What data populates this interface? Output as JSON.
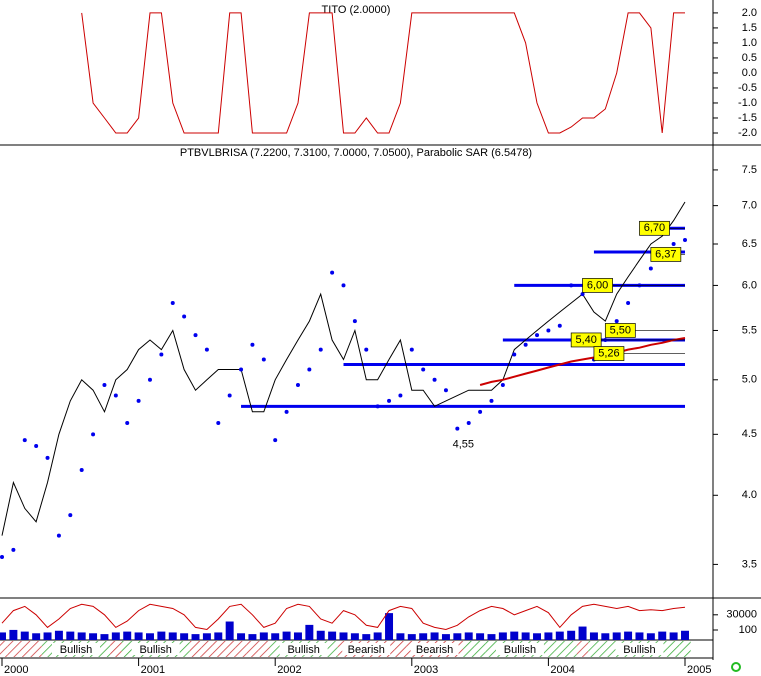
{
  "chart_data": [
    {
      "type": "line",
      "title": "TITO (2.0000)",
      "color": "#cc0000",
      "values": [
        null,
        null,
        null,
        null,
        null,
        null,
        null,
        2,
        -1,
        -1.5,
        -2,
        -2,
        -1.5,
        2,
        2,
        -1,
        -2,
        -2,
        -2,
        -2,
        2,
        2,
        -2,
        -2,
        -2,
        -2,
        -1,
        2,
        2,
        2,
        -2,
        -2,
        -1.5,
        -2,
        -2,
        -1,
        2,
        2,
        2,
        2,
        2,
        2,
        2,
        2,
        2,
        2,
        1,
        -1,
        -2,
        -2,
        -1.8,
        -1.5,
        -1.5,
        -1.2,
        0,
        2,
        2,
        1.5,
        -2,
        2,
        2
      ],
      "ylim": [
        -2.4,
        2.43
      ],
      "yticks": [
        {
          "value": 2,
          "label": "2.0"
        },
        1.5,
        {
          "value": 1,
          "label": "1.0"
        },
        0.5,
        {
          "value": 0,
          "label": "0.0"
        },
        -0.5,
        {
          "value": -1,
          "label": "-1.0"
        },
        -1.5,
        {
          "value": -2,
          "label": "-2.0"
        }
      ]
    },
    {
      "type": "line",
      "title": "PTBVLBRISA (7.2200, 7.3100, 7.0000, 7.0500), Parabolic SAR (6.5478)",
      "log_scale": true,
      "series": [
        {
          "color": "#000000",
          "marker": "line",
          "values": [
            3.7,
            4.1,
            3.9,
            3.8,
            4.1,
            4.5,
            4.8,
            5.0,
            4.9,
            4.7,
            5.0,
            5.1,
            5.3,
            5.4,
            5.3,
            5.5,
            5.1,
            4.9,
            5.0,
            5.1,
            5.1,
            5.1,
            4.7,
            4.7,
            5.0,
            5.2,
            5.4,
            5.6,
            5.9,
            5.4,
            5.2,
            5.5,
            5.0,
            5.0,
            5.2,
            5.4,
            4.9,
            4.9,
            4.75,
            4.8,
            4.85,
            4.9,
            4.9,
            4.9,
            5.0,
            5.3,
            5.4,
            5.5,
            5.6,
            5.7,
            5.8,
            5.9,
            5.7,
            5.6,
            5.9,
            6.1,
            6.3,
            6.5,
            6.6,
            6.8,
            7.05
          ]
        },
        {
          "color": "#0000ee",
          "marker": "dot",
          "values": [
            3.55,
            3.6,
            4.45,
            4.4,
            4.3,
            3.7,
            3.85,
            4.2,
            4.5,
            4.95,
            4.85,
            4.6,
            4.8,
            5.0,
            5.25,
            5.8,
            5.65,
            5.45,
            5.3,
            4.6,
            4.85,
            5.1,
            5.35,
            5.2,
            4.45,
            4.7,
            4.95,
            5.1,
            5.3,
            6.15,
            6.0,
            5.6,
            5.3,
            4.75,
            4.8,
            4.85,
            5.3,
            5.1,
            5.0,
            4.9,
            4.55,
            4.6,
            4.7,
            4.8,
            4.95,
            5.25,
            5.35,
            5.45,
            5.5,
            5.55,
            6.0,
            5.9,
            5.2,
            5.4,
            5.6,
            5.8,
            6.0,
            6.2,
            6.35,
            6.5,
            6.55
          ]
        },
        {
          "color": "#cc0000",
          "marker": "line",
          "values": [
            null,
            null,
            null,
            null,
            null,
            null,
            null,
            null,
            null,
            null,
            null,
            null,
            null,
            null,
            null,
            null,
            null,
            null,
            null,
            null,
            null,
            null,
            null,
            null,
            null,
            null,
            null,
            null,
            null,
            null,
            null,
            null,
            null,
            null,
            null,
            null,
            null,
            null,
            null,
            null,
            null,
            null,
            4.95,
            4.98,
            5.0,
            5.03,
            5.06,
            5.09,
            5.12,
            5.15,
            5.18,
            5.2,
            5.22,
            5.25,
            5.27,
            5.3,
            5.32,
            5.35,
            5.37,
            5.4,
            5.42
          ]
        }
      ],
      "ylim": [
        3.28,
        7.87
      ],
      "yticks": [
        3.5,
        {
          "value": 4,
          "label": "4.0"
        },
        4.5,
        {
          "value": 5,
          "label": "5.0"
        },
        5.5,
        {
          "value": 6,
          "label": "6.0"
        },
        6.5,
        {
          "value": 7,
          "label": "7.0"
        },
        7.5
      ],
      "levels": [
        {
          "value": 4.75,
          "start": 21
        },
        {
          "value": 5.15,
          "start": 30
        },
        {
          "value": 5.4,
          "start": 44
        },
        {
          "value": 6.0,
          "start": 45
        },
        {
          "value": 6.4,
          "start": 52
        },
        {
          "value": 6.7,
          "start": 56
        }
      ],
      "annotations": [
        {
          "value": 6.7,
          "label": "6,70",
          "at": 56
        },
        {
          "value": 6.37,
          "label": "6,37",
          "at": 57
        },
        {
          "value": 6.0,
          "label": "6,00",
          "at": 51
        },
        {
          "value": 5.5,
          "label": "5,50",
          "at": 53
        },
        {
          "value": 5.4,
          "label": "5,40",
          "at": 50
        },
        {
          "value": 5.26,
          "label": "5,26",
          "at": 52
        }
      ],
      "low_label": {
        "value": 4.55,
        "label": "4,55",
        "at": 40
      }
    },
    {
      "type": "bar",
      "categories": [
        "2000",
        null,
        null,
        null,
        null,
        null,
        null,
        null,
        null,
        null,
        null,
        null,
        "2001",
        null,
        null,
        null,
        null,
        null,
        null,
        null,
        null,
        null,
        null,
        null,
        "2002",
        null,
        null,
        null,
        null,
        null,
        null,
        null,
        null,
        null,
        null,
        null,
        "2003",
        null,
        null,
        null,
        null,
        null,
        null,
        null,
        null,
        null,
        null,
        null,
        "2004",
        null,
        null,
        null,
        null,
        null,
        null,
        null,
        null,
        null,
        null,
        null,
        "2005"
      ],
      "series": [
        {
          "color": "#0000cc",
          "values": [
            9000,
            12000,
            10000,
            8000,
            9000,
            11000,
            10000,
            9000,
            8000,
            7000,
            9000,
            10000,
            9000,
            8000,
            10000,
            9000,
            8000,
            7000,
            8000,
            9000,
            22000,
            8000,
            7000,
            9000,
            8000,
            10000,
            9000,
            18000,
            11000,
            10000,
            9000,
            8000,
            7000,
            9000,
            32000,
            8000,
            7000,
            8000,
            9000,
            7000,
            8000,
            9000,
            8000,
            7000,
            9000,
            10000,
            9000,
            8000,
            9000,
            10000,
            11000,
            16000,
            9000,
            8000,
            9000,
            10000,
            9000,
            8000,
            10000,
            9000,
            11000
          ]
        },
        {
          "color": "#cc0000",
          "axis": "y2",
          "values": [
            40,
            70,
            80,
            60,
            30,
            50,
            75,
            85,
            80,
            60,
            30,
            45,
            70,
            85,
            80,
            75,
            60,
            30,
            25,
            50,
            80,
            85,
            60,
            30,
            40,
            75,
            85,
            80,
            50,
            40,
            70,
            60,
            35,
            30,
            70,
            80,
            75,
            40,
            30,
            25,
            35,
            55,
            70,
            80,
            75,
            60,
            70,
            80,
            65,
            30,
            60,
            80,
            85,
            80,
            75,
            80,
            70,
            72,
            70,
            75,
            78
          ]
        }
      ],
      "ylim": [
        0,
        50000
      ],
      "yticks": [
        30000
      ],
      "y2lim": [
        0,
        100
      ],
      "y2ticks": [
        100
      ],
      "regime": [
        null,
        null,
        null,
        null,
        "Bullish",
        "Bullish",
        "Bullish",
        "Bullish",
        "Bullish",
        "Bullish",
        null,
        "Bullish",
        "Bullish",
        "Bullish",
        "Bullish",
        "Bullish",
        "Bullish",
        null,
        null,
        null,
        null,
        null,
        null,
        null,
        "Bullish",
        "Bullish",
        "Bullish",
        "Bullish",
        "Bullish",
        "Bullish",
        "Bearish",
        "Bearish",
        "Bearish",
        "Bearish",
        "Bearish",
        null,
        "Bearish",
        "Bearish",
        "Bearish",
        "Bearish",
        "Bearish",
        "Bullish",
        "Bullish",
        "Bullish",
        "Bullish",
        "Bullish",
        "Bullish",
        "Bullish",
        "Bullish",
        "Bullish",
        "Bullish",
        null,
        "Bullish",
        "Bullish",
        "Bullish",
        "Bullish",
        "Bullish",
        "Bullish",
        "Bullish",
        "Bullish",
        "Bullish"
      ]
    }
  ]
}
